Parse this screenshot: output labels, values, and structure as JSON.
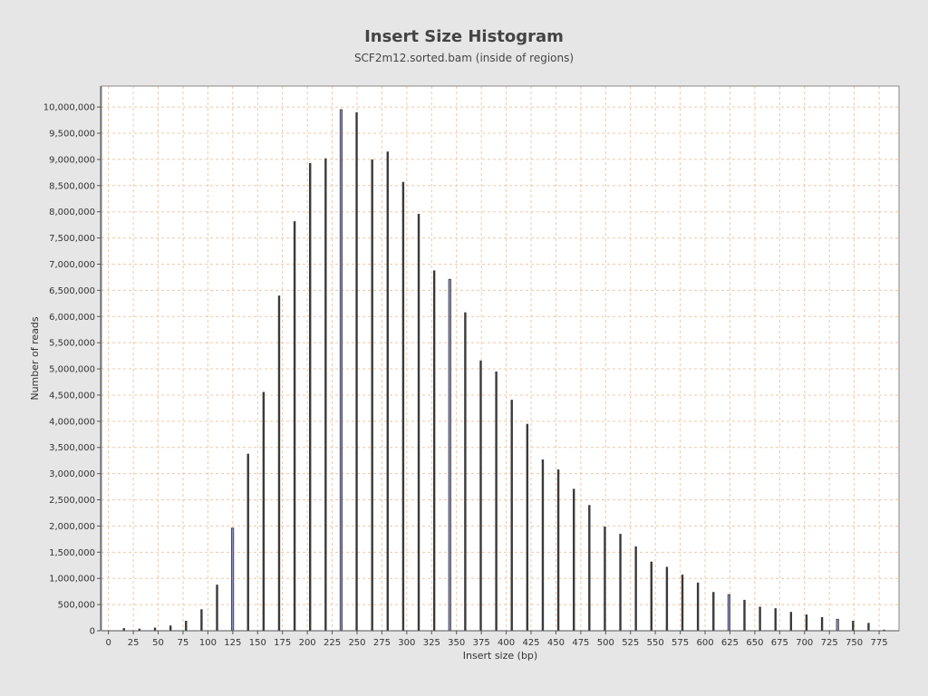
{
  "chart_data": {
    "type": "bar",
    "title": "Insert Size Histogram",
    "subtitle": "SCF2m12.sorted.bam (inside of regions)",
    "xlabel": "Insert size (bp)",
    "ylabel": "Number of reads",
    "xlim": [
      -7,
      795
    ],
    "ylim": [
      0,
      10400000
    ],
    "x_ticks": [
      0,
      25,
      50,
      75,
      100,
      125,
      150,
      175,
      200,
      225,
      250,
      275,
      300,
      325,
      350,
      375,
      400,
      425,
      450,
      475,
      500,
      525,
      550,
      575,
      600,
      625,
      650,
      675,
      700,
      725,
      750,
      775
    ],
    "x_tick_labels": [
      "0",
      "25",
      "50",
      "75",
      "100",
      "125",
      "150",
      "175",
      "200",
      "225",
      "250",
      "275",
      "300",
      "325",
      "350",
      "375",
      "400",
      "425",
      "450",
      "475",
      "500",
      "525",
      "550",
      "575",
      "600",
      "625",
      "650",
      "675",
      "700",
      "725",
      "750",
      "775"
    ],
    "y_ticks": [
      0,
      500000,
      1000000,
      1500000,
      2000000,
      2500000,
      3000000,
      3500000,
      4000000,
      4500000,
      5000000,
      5500000,
      6000000,
      6500000,
      7000000,
      7500000,
      8000000,
      8500000,
      9000000,
      9500000,
      10000000
    ],
    "y_tick_labels": [
      "0",
      "500,000",
      "1,000,000",
      "1,500,000",
      "2,000,000",
      "2,500,000",
      "3,000,000",
      "3,500,000",
      "4,000,000",
      "4,500,000",
      "5,000,000",
      "5,500,000",
      "6,000,000",
      "6,500,000",
      "7,000,000",
      "7,500,000",
      "8,000,000",
      "8,500,000",
      "9,000,000",
      "9,500,000",
      "10,000,000"
    ],
    "grid": true,
    "legend": "none",
    "bar_color": "#3a3a3a",
    "bar_highlight_color": "#8d8dc8",
    "grid_color": "#f0c8a8",
    "plot_background": "#ffffff",
    "x": [
      0,
      15.6,
      31.2,
      46.8,
      62.4,
      78,
      93.6,
      109.2,
      124.8,
      140.4,
      156,
      171.6,
      187.2,
      202.8,
      218.4,
      234,
      249.6,
      265.2,
      280.8,
      296.4,
      312,
      327.6,
      343.2,
      358.8,
      374.4,
      390,
      405.6,
      421.2,
      436.8,
      452.4,
      468,
      483.6,
      499.2,
      514.8,
      530.4,
      546,
      561.6,
      577.2,
      592.8,
      608.4,
      624,
      639.6,
      655.2,
      670.8,
      686.4,
      702,
      717.6,
      733.2,
      748.8,
      764.4,
      780
    ],
    "values": [
      5000,
      50000,
      40000,
      60000,
      100000,
      190000,
      410000,
      880000,
      1960000,
      3380000,
      4560000,
      6400000,
      7820000,
      8930000,
      9020000,
      9950000,
      9900000,
      9000000,
      9150000,
      8570000,
      7960000,
      6880000,
      6710000,
      6080000,
      5160000,
      4950000,
      4410000,
      3950000,
      3270000,
      3080000,
      2710000,
      2400000,
      1990000,
      1850000,
      1610000,
      1320000,
      1220000,
      1070000,
      920000,
      740000,
      690000,
      590000,
      460000,
      430000,
      360000,
      310000,
      260000,
      220000,
      190000,
      150000,
      20000
    ],
    "highlighted_x": [
      124.8,
      234,
      343.2,
      624,
      733.2
    ]
  }
}
